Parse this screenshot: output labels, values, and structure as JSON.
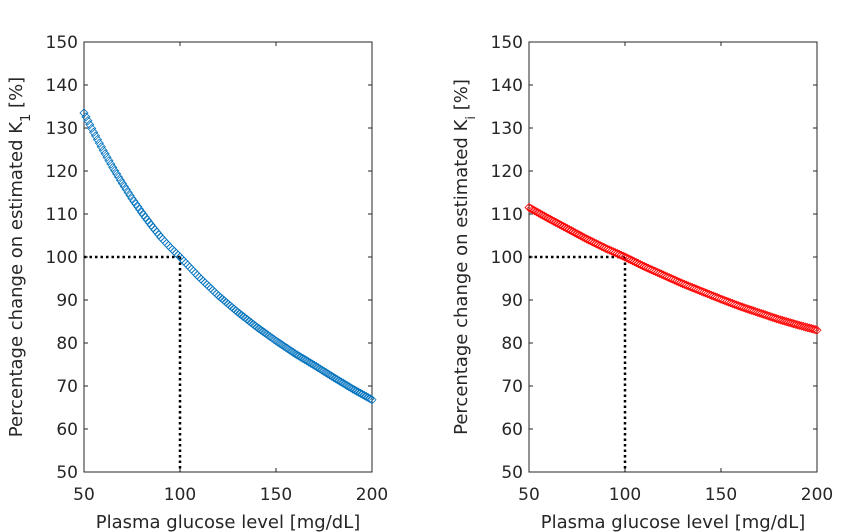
{
  "chart_data": [
    {
      "type": "scatter",
      "xlabel": "Plasma glucose level [mg/dL]",
      "ylabel": "Percentage change on estimated K",
      "ylabel_subscript": "1",
      "ylabel_suffix": " [%]",
      "xlim": [
        50,
        200
      ],
      "ylim": [
        50,
        150
      ],
      "xticks": [
        50,
        100,
        150,
        200
      ],
      "yticks": [
        50,
        60,
        70,
        80,
        90,
        100,
        110,
        120,
        130,
        140,
        150
      ],
      "marker": "diamond",
      "color": "#0072BD",
      "series": [
        {
          "name": "K1",
          "x": [
            50,
            55,
            60,
            65,
            70,
            75,
            80,
            85,
            90,
            95,
            100,
            110,
            120,
            130,
            140,
            150,
            160,
            170,
            180,
            190,
            200
          ],
          "y": [
            133.5,
            129.0,
            124.8,
            120.8,
            117.1,
            113.6,
            110.4,
            107.4,
            104.6,
            102.2,
            100.0,
            95.3,
            91.0,
            87.2,
            83.7,
            80.5,
            77.5,
            74.8,
            72.0,
            69.3,
            66.8
          ]
        }
      ],
      "reference_lines": {
        "x": 100,
        "y": 100,
        "style": "dotted"
      }
    },
    {
      "type": "scatter",
      "xlabel": "Plasma glucose level [mg/dL]",
      "ylabel": "Percentage change on estimated K",
      "ylabel_subscript": "i",
      "ylabel_suffix": " [%]",
      "xlim": [
        50,
        200
      ],
      "ylim": [
        50,
        150
      ],
      "xticks": [
        50,
        100,
        150,
        200
      ],
      "yticks": [
        50,
        60,
        70,
        80,
        90,
        100,
        110,
        120,
        130,
        140,
        150
      ],
      "marker": "diamond",
      "color": "#FF0000",
      "series": [
        {
          "name": "Ki",
          "x": [
            50,
            60,
            70,
            80,
            90,
            100,
            110,
            120,
            130,
            140,
            150,
            160,
            170,
            180,
            190,
            200
          ],
          "y": [
            111.5,
            109.0,
            106.6,
            104.2,
            102.0,
            100.0,
            97.8,
            95.8,
            93.8,
            92.0,
            90.2,
            88.5,
            87.0,
            85.5,
            84.2,
            83.0
          ]
        }
      ],
      "reference_lines": {
        "x": 100,
        "y": 100,
        "style": "dotted"
      }
    }
  ]
}
